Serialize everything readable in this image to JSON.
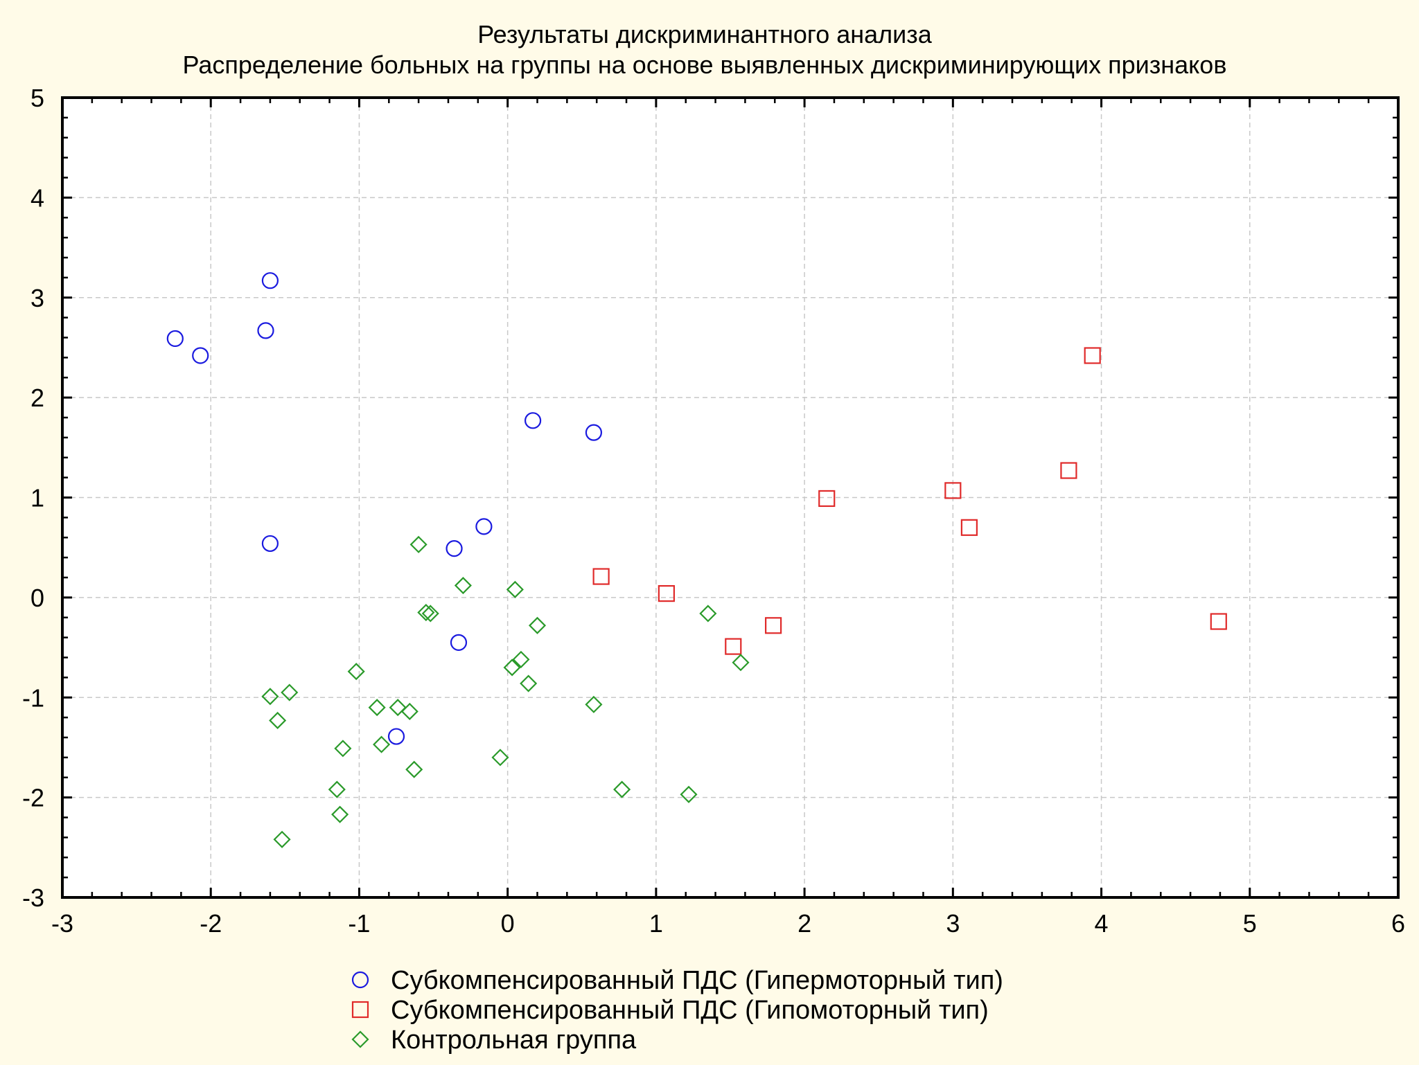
{
  "chart_data": {
    "type": "scatter",
    "title": "Результаты дискриминантного анализа",
    "subtitle": "Распределение больных на группы на основе выявленных дискриминирующих признаков",
    "xlabel": "",
    "ylabel": "",
    "xlim": [
      -3,
      6
    ],
    "ylim": [
      -3,
      5
    ],
    "x_ticks": [
      "-3",
      "-2",
      "-1",
      "0",
      "1",
      "2",
      "3",
      "4",
      "5",
      "6"
    ],
    "y_ticks": [
      "-3",
      "-2",
      "-1",
      "0",
      "1",
      "2",
      "3",
      "4",
      "5"
    ],
    "grid": true,
    "legend_position": "bottom",
    "series": [
      {
        "name": "Субкомпенсированный ПДС (Гипермоторный тип)",
        "marker": "circle",
        "color": "#1a1adf",
        "points": [
          [
            -1.6,
            3.17
          ],
          [
            -1.63,
            2.67
          ],
          [
            -2.24,
            2.59
          ],
          [
            -2.07,
            2.42
          ],
          [
            0.17,
            1.77
          ],
          [
            0.58,
            1.65
          ],
          [
            -0.16,
            0.71
          ],
          [
            -1.6,
            0.54
          ],
          [
            -0.36,
            0.49
          ],
          [
            -0.33,
            -0.45
          ],
          [
            -0.75,
            -1.39
          ]
        ]
      },
      {
        "name": "Субкомпенсированный ПДС (Гипомоторный тип)",
        "marker": "square",
        "color": "#e02a2a",
        "points": [
          [
            3.94,
            2.42
          ],
          [
            3.78,
            1.27
          ],
          [
            3.0,
            1.07
          ],
          [
            2.15,
            0.99
          ],
          [
            3.11,
            0.7
          ],
          [
            0.63,
            0.21
          ],
          [
            1.07,
            0.04
          ],
          [
            1.79,
            -0.28
          ],
          [
            1.52,
            -0.49
          ],
          [
            4.79,
            -0.24
          ]
        ]
      },
      {
        "name": "Контрольная группа",
        "marker": "diamond",
        "color": "#2a9a2a",
        "points": [
          [
            -0.6,
            0.53
          ],
          [
            -0.3,
            0.12
          ],
          [
            0.05,
            0.08
          ],
          [
            -0.55,
            -0.15
          ],
          [
            -0.52,
            -0.16
          ],
          [
            0.2,
            -0.28
          ],
          [
            1.35,
            -0.16
          ],
          [
            -1.02,
            -0.74
          ],
          [
            0.09,
            -0.62
          ],
          [
            0.03,
            -0.7
          ],
          [
            1.57,
            -0.65
          ],
          [
            -1.6,
            -0.99
          ],
          [
            -1.47,
            -0.95
          ],
          [
            0.14,
            -0.86
          ],
          [
            0.58,
            -1.07
          ],
          [
            -0.88,
            -1.1
          ],
          [
            -0.74,
            -1.1
          ],
          [
            -0.66,
            -1.14
          ],
          [
            -1.55,
            -1.23
          ],
          [
            -0.85,
            -1.47
          ],
          [
            -1.11,
            -1.51
          ],
          [
            -0.05,
            -1.6
          ],
          [
            -0.63,
            -1.72
          ],
          [
            -1.15,
            -1.92
          ],
          [
            0.77,
            -1.92
          ],
          [
            1.22,
            -1.97
          ],
          [
            -1.13,
            -2.17
          ],
          [
            -1.52,
            -2.42
          ]
        ]
      }
    ]
  }
}
